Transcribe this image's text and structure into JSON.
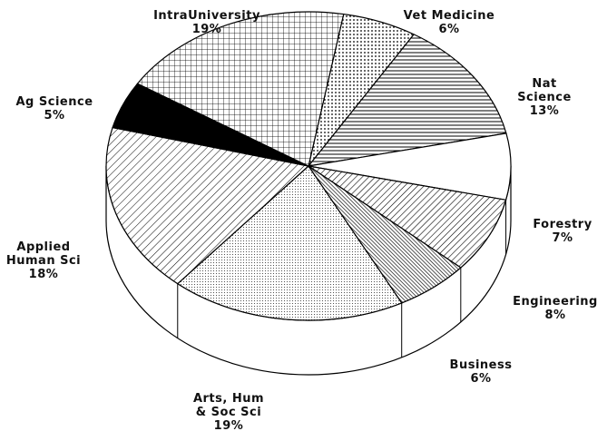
{
  "chart_data": {
    "type": "pie",
    "categories": [
      "Vet Medicine",
      "Nat Science",
      "Forestry",
      "Engineering",
      "Business",
      "Arts, Hum\n& Soc Sci",
      "Applied\nHuman Sci",
      "Ag Science",
      "IntraUniversity"
    ],
    "values": [
      6,
      13,
      7,
      8,
      6,
      19,
      18,
      5,
      19
    ],
    "value_labels": [
      "6%",
      "13%",
      "7%",
      "8%",
      "6%",
      "19%",
      "18%",
      "5%",
      "19%"
    ],
    "three_d": true
  }
}
